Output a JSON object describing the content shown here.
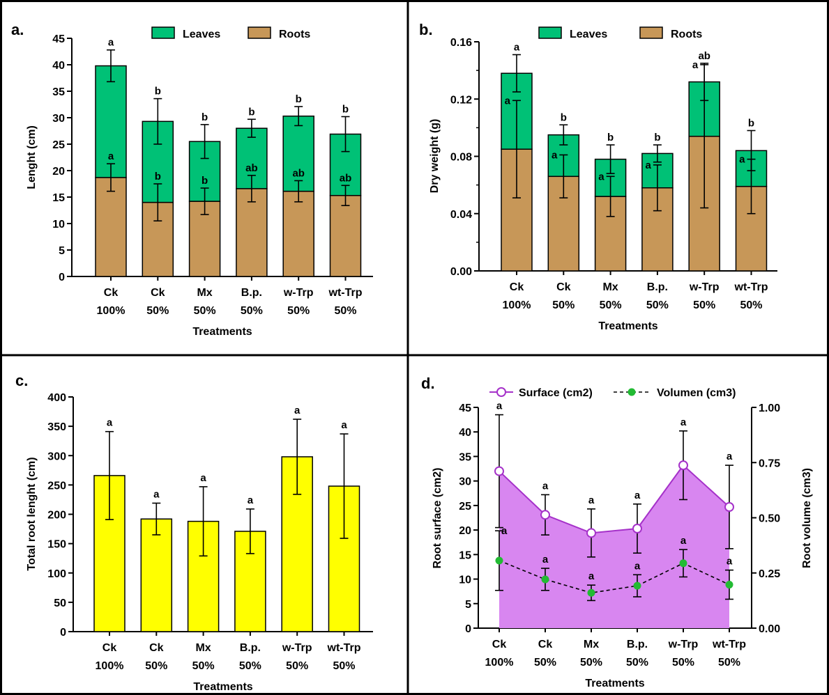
{
  "colors": {
    "leaves": "#00C176",
    "roots": "#C79758",
    "total_root": "#FFFF00",
    "surface_line": "#A531C9",
    "surface_fill": "#D886F0",
    "volume_point": "#22BB33"
  },
  "treatments": [
    {
      "line1": "Ck",
      "line2": "100%"
    },
    {
      "line1": "Ck",
      "line2": "50%"
    },
    {
      "line1": "Mx",
      "line2": "50%"
    },
    {
      "line1": "B.p.",
      "line2": "50%"
    },
    {
      "line1": "w-Trp",
      "line2": "50%"
    },
    {
      "line1": "wt-Trp",
      "line2": "50%"
    }
  ],
  "chart_data": [
    {
      "panel": "a.",
      "type": "bar",
      "stacked": true,
      "ylabel": "Lenght (cm)",
      "xlabel": "Treatments",
      "ylim": [
        0,
        45
      ],
      "yticks": [
        "0",
        "5",
        "10",
        "15",
        "20",
        "25",
        "30",
        "35",
        "40",
        "45"
      ],
      "legend": [
        "Leaves",
        "Roots"
      ],
      "series": [
        {
          "name": "Roots",
          "values": [
            18.7,
            14.0,
            14.2,
            16.6,
            16.1,
            15.3
          ],
          "err": [
            2.6,
            3.5,
            2.5,
            2.5,
            2.0,
            1.9
          ],
          "letters": [
            "a",
            "b",
            "b",
            "ab",
            "ab",
            "ab"
          ]
        },
        {
          "name": "Leaves",
          "values": [
            21.1,
            15.3,
            11.3,
            11.4,
            14.2,
            11.6
          ],
          "err": [
            3.0,
            4.3,
            3.2,
            1.7,
            1.8,
            3.3
          ],
          "letters": [
            "a",
            "b",
            "b",
            "b",
            "b",
            "b"
          ]
        }
      ]
    },
    {
      "panel": "b.",
      "type": "bar",
      "stacked": true,
      "ylabel": "Dry weight (g)",
      "xlabel": "Treatments",
      "ylim": [
        0,
        0.16
      ],
      "yticks": [
        "0.00",
        "0.04",
        "0.08",
        "0.12",
        "0.16"
      ],
      "legend": [
        "Leaves",
        "Roots"
      ],
      "series": [
        {
          "name": "Roots",
          "values": [
            0.085,
            0.066,
            0.052,
            0.058,
            0.094,
            0.059
          ],
          "err": [
            0.034,
            0.015,
            0.014,
            0.016,
            0.05,
            0.019
          ],
          "letters": [
            "a",
            "a",
            "a",
            "a",
            "a",
            "a"
          ]
        },
        {
          "name": "Leaves",
          "values": [
            0.053,
            0.029,
            0.026,
            0.024,
            0.038,
            0.025
          ],
          "err": [
            0.013,
            0.007,
            0.01,
            0.006,
            0.013,
            0.014
          ],
          "letters": [
            "a",
            "b",
            "b",
            "b",
            "ab",
            "b"
          ]
        }
      ]
    },
    {
      "panel": "c.",
      "type": "bar",
      "ylabel": "Total root lenght (cm)",
      "xlabel": "Treatments",
      "ylim": [
        0,
        400
      ],
      "yticks": [
        "0",
        "50",
        "100",
        "150",
        "200",
        "250",
        "300",
        "350",
        "400"
      ],
      "values": [
        266,
        192,
        188,
        171,
        298,
        248
      ],
      "err": [
        75,
        27,
        59,
        38,
        64,
        89
      ],
      "letters": [
        "a",
        "a",
        "a",
        "a",
        "a",
        "a"
      ]
    },
    {
      "panel": "d.",
      "type": "line",
      "xlabel": "Treatments",
      "ylabel": "Root surface (cm2)",
      "ylabel_right": "Root volume (cm3)",
      "ylim": [
        0,
        45
      ],
      "ylim_right": [
        0,
        1.0
      ],
      "yticks": [
        "0",
        "5",
        "10",
        "15",
        "20",
        "25",
        "30",
        "35",
        "40",
        "45"
      ],
      "yticks_right": [
        "0.00",
        "0.25",
        "0.50",
        "0.75",
        "1.00"
      ],
      "series": [
        {
          "name": "Surface (cm2)",
          "values": [
            32.0,
            23.1,
            19.4,
            20.3,
            33.2,
            24.7
          ],
          "err": [
            11.5,
            4.1,
            4.9,
            5.0,
            7.0,
            8.5
          ],
          "letters": [
            "a",
            "a",
            "a",
            "a",
            "a",
            "a"
          ]
        },
        {
          "name": "Volumen (cm3)",
          "values": [
            0.306,
            0.221,
            0.16,
            0.192,
            0.294,
            0.197
          ],
          "err": [
            0.135,
            0.05,
            0.035,
            0.05,
            0.062,
            0.066
          ],
          "letters": [
            "a",
            "a",
            "a",
            "a",
            "a",
            "a"
          ]
        }
      ]
    }
  ]
}
